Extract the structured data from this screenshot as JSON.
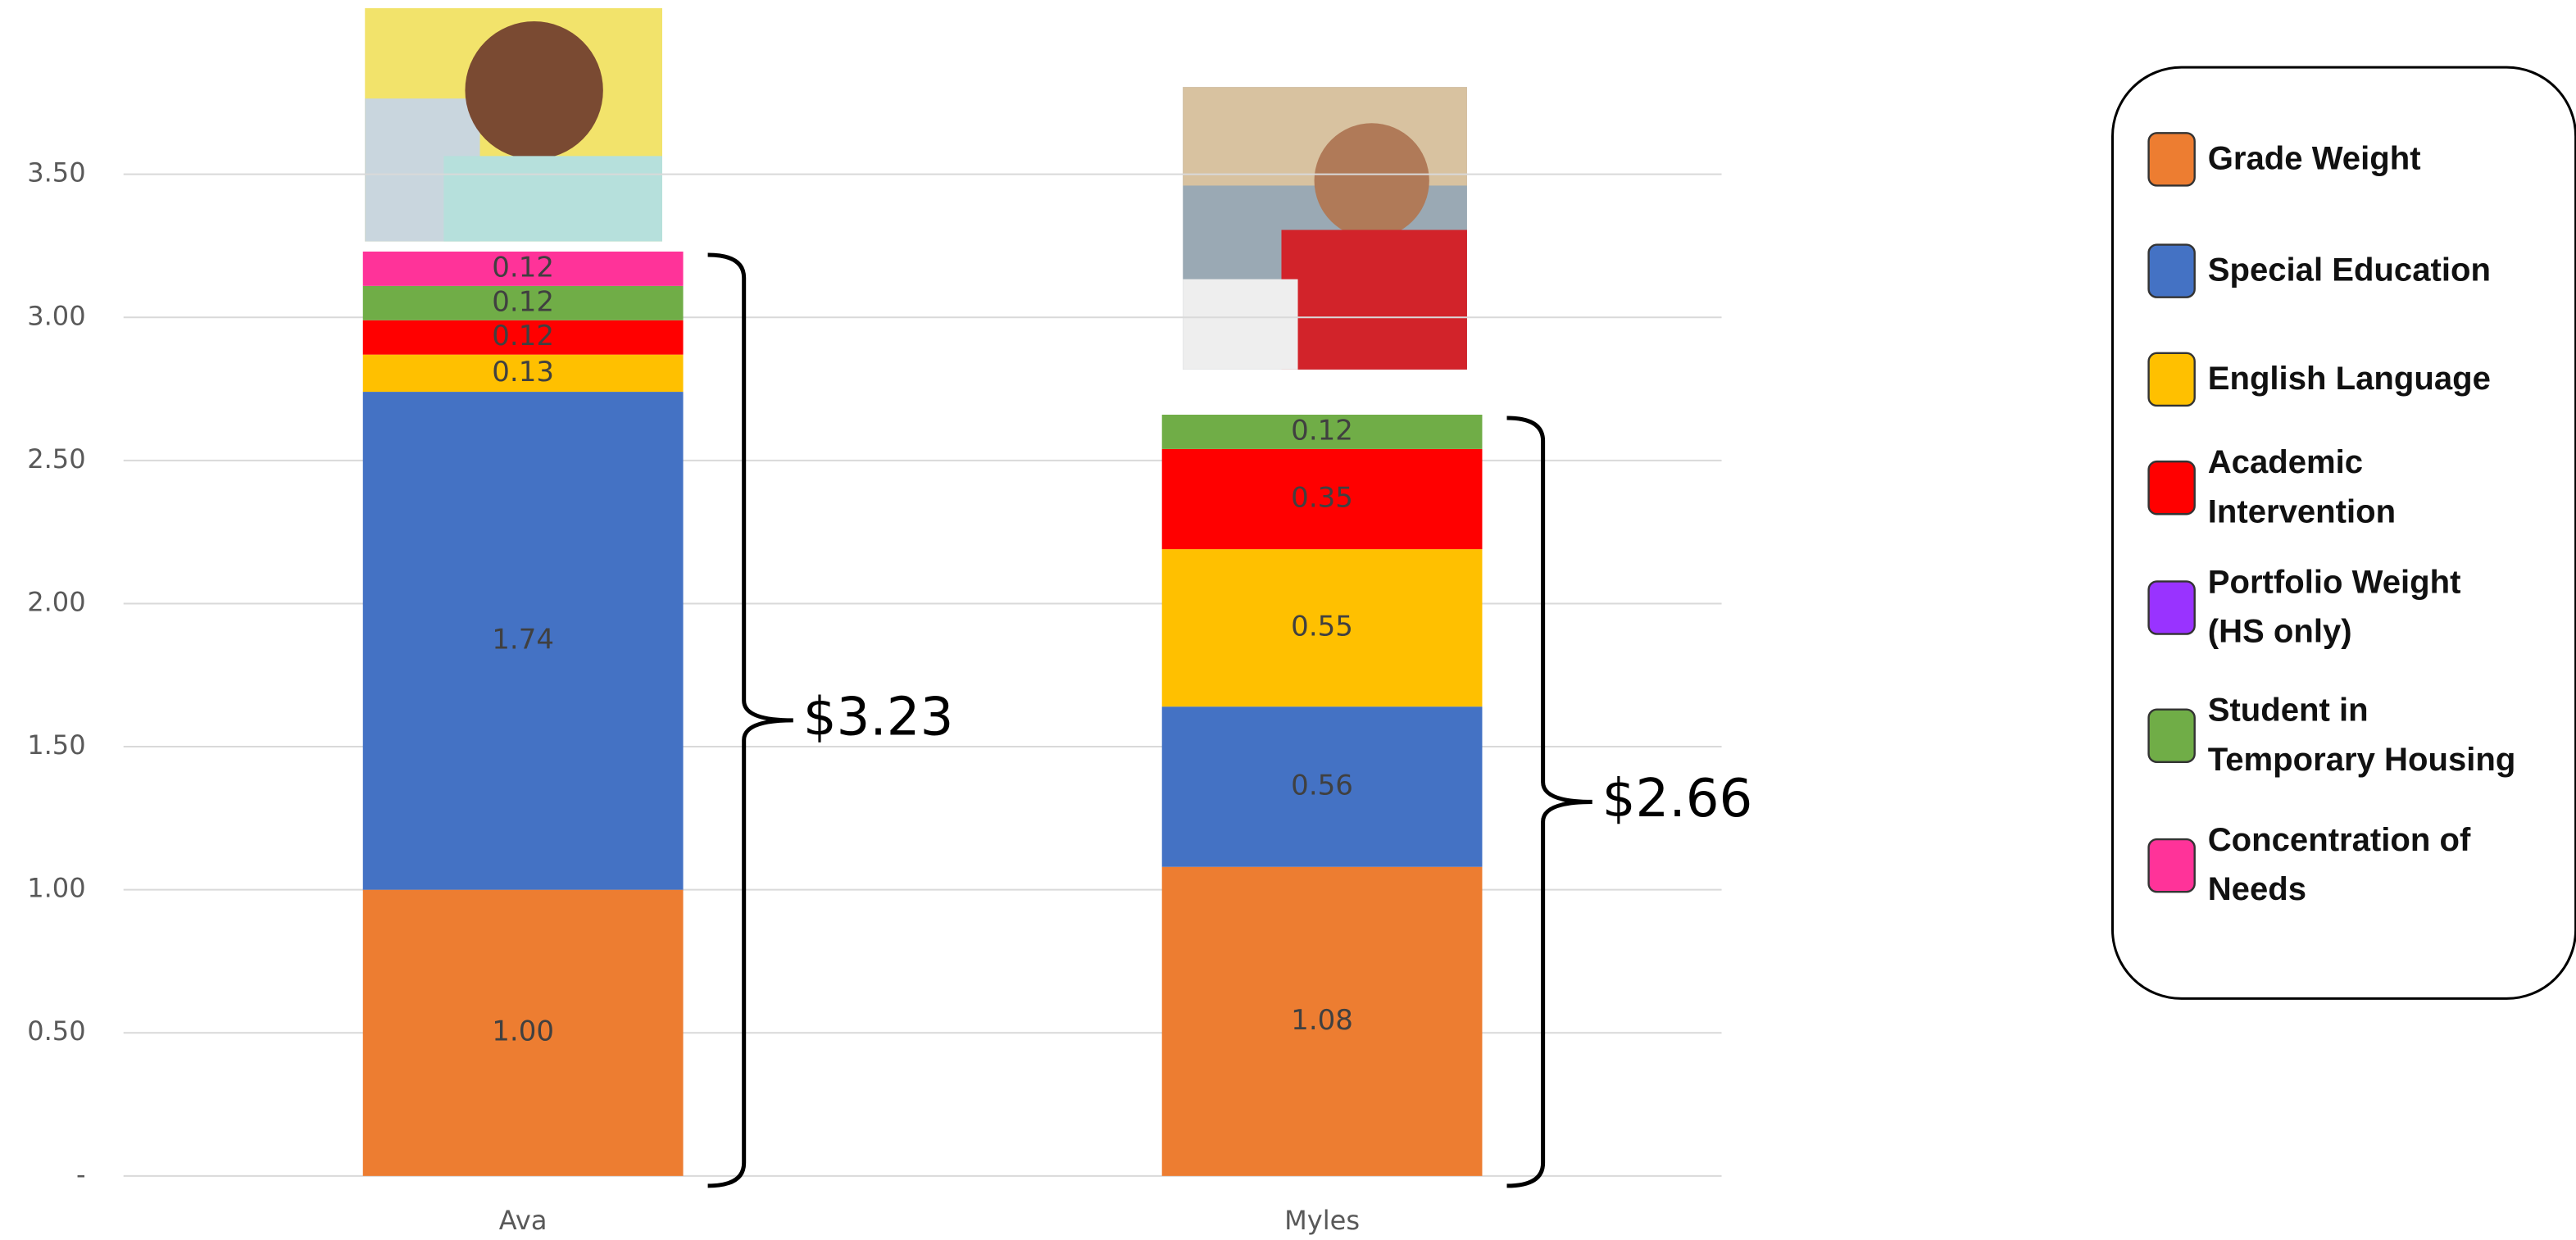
{
  "chart_data": {
    "type": "stacked-bar",
    "categories": [
      "Ava",
      "Myles"
    ],
    "series": [
      {
        "name": "Grade Weight",
        "color": "#ED7D31",
        "values": [
          1.0,
          1.08
        ],
        "value_labels": [
          "1.00",
          "1.08"
        ]
      },
      {
        "name": "Special Education",
        "color": "#4472C4",
        "values": [
          1.74,
          0.56
        ],
        "value_labels": [
          "1.74",
          "0.56"
        ]
      },
      {
        "name": "English Language",
        "color": "#FFC000",
        "values": [
          0.13,
          0.55
        ],
        "value_labels": [
          "0.13",
          "0.55"
        ]
      },
      {
        "name": "Academic Intervention",
        "color": "#FF0000",
        "values": [
          0.12,
          0.35
        ],
        "value_labels": [
          "0.12",
          "0.35"
        ]
      },
      {
        "name": "Portfolio Weight (HS only)",
        "color": "#9933FF",
        "values": [
          null,
          null
        ]
      },
      {
        "name": "Student in Temporary Housing",
        "color": "#70AD47",
        "values": [
          0.12,
          0.12
        ],
        "value_labels": [
          "0.12",
          "0.12"
        ]
      },
      {
        "name": "Concentration of Needs",
        "color": "#FF3399",
        "values": [
          0.12,
          null
        ],
        "value_labels": [
          "0.12",
          null
        ]
      }
    ],
    "totals": [
      "$3.23",
      "$2.66"
    ],
    "ylim": [
      0,
      4
    ],
    "yticks": [
      {
        "value": 0,
        "label": "-"
      },
      {
        "value": 0.5,
        "label": "0.50"
      },
      {
        "value": 1,
        "label": "1.00"
      },
      {
        "value": 1.5,
        "label": "1.50"
      },
      {
        "value": 2,
        "label": "2.00"
      },
      {
        "value": 2.5,
        "label": "2.50"
      },
      {
        "value": 3,
        "label": "3.00"
      },
      {
        "value": 3.5,
        "label": "3.50"
      }
    ],
    "grid": true,
    "legend": "right"
  }
}
